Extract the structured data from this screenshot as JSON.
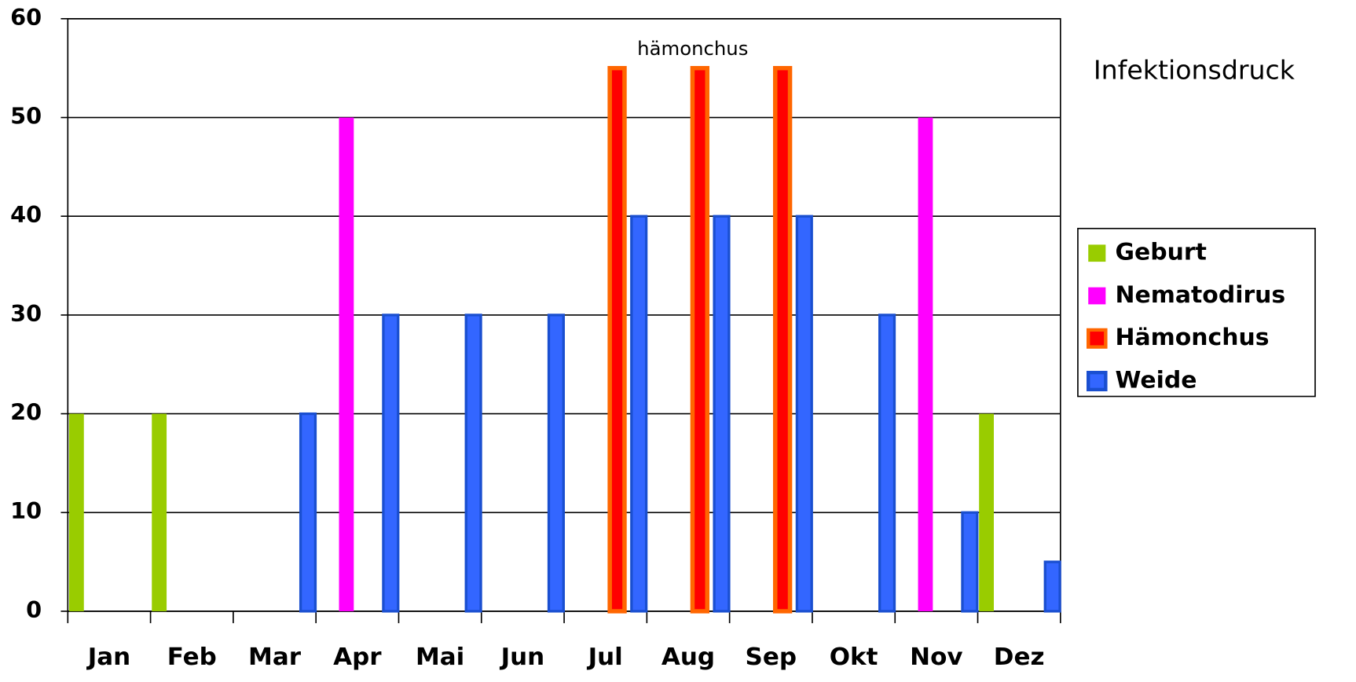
{
  "chart_data": {
    "type": "bar",
    "categories": [
      "Jan",
      "Feb",
      "Mar",
      "Apr",
      "Mai",
      "Jun",
      "Jul",
      "Aug",
      "Sep",
      "Okt",
      "Nov",
      "Dez"
    ],
    "series": [
      {
        "name": "Geburt",
        "color": "#99cc00",
        "edgecolor": "#99cc00",
        "values": [
          20,
          20,
          null,
          null,
          null,
          null,
          null,
          null,
          null,
          null,
          null,
          20
        ]
      },
      {
        "name": "Nematodirus",
        "color": "#ff00ff",
        "edgecolor": "#ff00ff",
        "values": [
          null,
          null,
          null,
          50,
          null,
          null,
          null,
          null,
          null,
          null,
          50,
          null
        ]
      },
      {
        "name": "Hämonchus",
        "color": "#ff0000",
        "edgecolor": "#ff6600",
        "values": [
          null,
          null,
          null,
          null,
          null,
          null,
          55,
          55,
          55,
          null,
          null,
          null
        ]
      },
      {
        "name": "Weide",
        "color": "#3366ff",
        "edgecolor": "#1a4fd0",
        "values": [
          null,
          null,
          20,
          30,
          30,
          30,
          40,
          40,
          40,
          30,
          10,
          5
        ]
      }
    ],
    "ylim": [
      0,
      60
    ],
    "yticks": [
      0,
      10,
      20,
      30,
      40,
      50,
      60
    ],
    "grid": true,
    "legend": "right",
    "annotation": "hämonchus",
    "side_label": "Infektionsdruck"
  }
}
